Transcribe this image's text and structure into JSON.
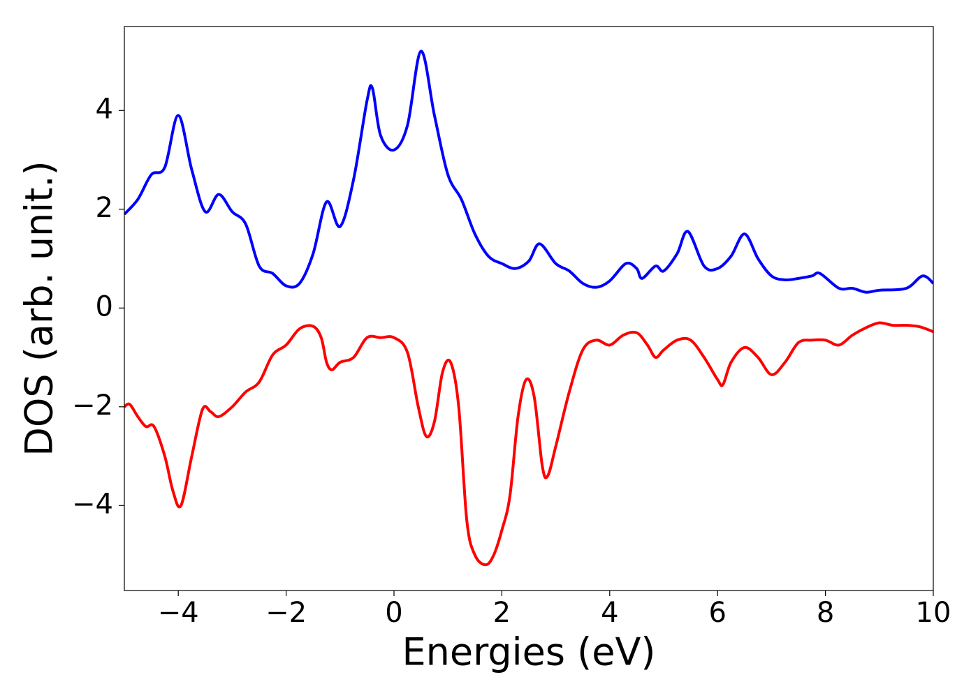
{
  "chart_data": {
    "type": "line",
    "xlabel": "Energies (eV)",
    "ylabel": "DOS (arb. unit.)",
    "xlim": [
      -5,
      10
    ],
    "ylim": [
      -5.72,
      5.7
    ],
    "xticks": [
      {
        "value": -4,
        "label": "−4"
      },
      {
        "value": -2,
        "label": "−2"
      },
      0,
      2,
      4,
      6,
      8,
      10
    ],
    "yticks": [
      {
        "value": -4,
        "label": "−4"
      },
      {
        "value": -2,
        "label": "−2"
      },
      0,
      2,
      4
    ],
    "grid": false,
    "series": [
      {
        "color": "#0000ff",
        "x": [
          -5,
          -4.75,
          -4.5,
          -4.25,
          -4.0,
          -3.75,
          -3.5,
          -3.25,
          -3.0,
          -2.75,
          -2.5,
          -2.25,
          -2.0,
          -1.75,
          -1.5,
          -1.25,
          -1.0,
          -0.75,
          -0.5,
          -0.4,
          -0.25,
          0,
          0.25,
          0.5,
          0.75,
          1.0,
          1.25,
          1.5,
          1.75,
          2.0,
          2.25,
          2.5,
          2.7,
          3.0,
          3.25,
          3.5,
          3.75,
          4.0,
          4.3,
          4.5,
          4.6,
          4.85,
          5.0,
          5.25,
          5.45,
          5.75,
          6.0,
          6.25,
          6.5,
          6.75,
          7.0,
          7.25,
          7.5,
          7.75,
          7.9,
          8.25,
          8.5,
          8.75,
          9.0,
          9.5,
          9.8,
          10
        ],
        "values": [
          1.9,
          2.2,
          2.7,
          2.85,
          3.9,
          2.8,
          1.95,
          2.3,
          1.95,
          1.7,
          0.85,
          0.7,
          0.45,
          0.5,
          1.1,
          2.15,
          1.65,
          2.6,
          4.2,
          4.45,
          3.5,
          3.2,
          3.7,
          5.2,
          3.9,
          2.7,
          2.2,
          1.5,
          1.05,
          0.9,
          0.8,
          0.95,
          1.3,
          0.9,
          0.75,
          0.5,
          0.42,
          0.55,
          0.9,
          0.8,
          0.6,
          0.85,
          0.75,
          1.1,
          1.55,
          0.85,
          0.8,
          1.05,
          1.5,
          1.0,
          0.65,
          0.57,
          0.6,
          0.65,
          0.7,
          0.4,
          0.4,
          0.32,
          0.36,
          0.4,
          0.65,
          0.5
        ]
      },
      {
        "color": "#ff0000",
        "x": [
          -5,
          -4.9,
          -4.75,
          -4.6,
          -4.45,
          -4.25,
          -4.1,
          -3.95,
          -3.75,
          -3.55,
          -3.4,
          -3.25,
          -3.0,
          -2.75,
          -2.5,
          -2.25,
          -2.0,
          -1.75,
          -1.5,
          -1.35,
          -1.25,
          -1.15,
          -1.0,
          -0.75,
          -0.5,
          -0.25,
          0,
          0.25,
          0.45,
          0.6,
          0.75,
          0.9,
          1.05,
          1.2,
          1.35,
          1.5,
          1.7,
          1.85,
          2.0,
          2.15,
          2.3,
          2.45,
          2.6,
          2.75,
          2.85,
          3.0,
          3.25,
          3.5,
          3.75,
          4.0,
          4.25,
          4.5,
          4.7,
          4.85,
          5.0,
          5.25,
          5.5,
          5.75,
          6.0,
          6.1,
          6.25,
          6.5,
          6.75,
          7.0,
          7.25,
          7.5,
          7.75,
          8.0,
          8.25,
          8.5,
          8.75,
          9.0,
          9.25,
          9.5,
          9.75,
          10
        ],
        "values": [
          -2.0,
          -1.95,
          -2.2,
          -2.4,
          -2.4,
          -3.0,
          -3.7,
          -4.0,
          -3.0,
          -2.05,
          -2.1,
          -2.2,
          -2.0,
          -1.7,
          -1.5,
          -0.95,
          -0.75,
          -0.42,
          -0.37,
          -0.6,
          -1.1,
          -1.25,
          -1.1,
          -1.0,
          -0.6,
          -0.6,
          -0.6,
          -0.9,
          -2.0,
          -2.6,
          -2.3,
          -1.3,
          -1.1,
          -2.0,
          -4.3,
          -5.0,
          -5.2,
          -5.0,
          -4.5,
          -3.8,
          -2.2,
          -1.45,
          -1.8,
          -3.2,
          -3.4,
          -2.8,
          -1.7,
          -0.85,
          -0.65,
          -0.75,
          -0.55,
          -0.5,
          -0.75,
          -1.0,
          -0.85,
          -0.65,
          -0.65,
          -1.0,
          -1.45,
          -1.55,
          -1.1,
          -0.8,
          -1.0,
          -1.35,
          -1.1,
          -0.7,
          -0.65,
          -0.65,
          -0.75,
          -0.55,
          -0.4,
          -0.3,
          -0.35,
          -0.35,
          -0.38,
          -0.48
        ]
      }
    ]
  }
}
